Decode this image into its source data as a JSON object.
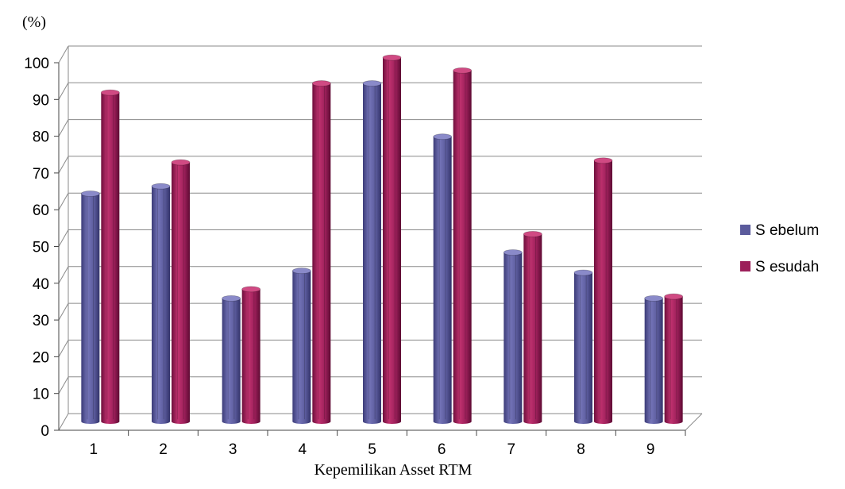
{
  "chart_data": {
    "type": "bar",
    "title": "",
    "ylabel": "(%)",
    "xlabel": "Kepemilikan Asset RTM",
    "categories": [
      "1",
      "2",
      "3",
      "4",
      "5",
      "6",
      "7",
      "8",
      "9"
    ],
    "series": [
      {
        "name": "S ebelum",
        "color": "#5b5b9c",
        "values": [
          62,
          64,
          33.5,
          41,
          92,
          77.5,
          46,
          40.5,
          33.5
        ]
      },
      {
        "name": "S esudah",
        "color": "#9c1f5a",
        "values": [
          89.5,
          70.5,
          36,
          92,
          99,
          95.5,
          51,
          71,
          34
        ]
      }
    ],
    "ylim": [
      0,
      100
    ],
    "yticks": [
      "0",
      "10",
      "20",
      "30",
      "40",
      "50",
      "60",
      "70",
      "80",
      "90",
      "100"
    ],
    "grid": true,
    "legend_position": "right",
    "style": "3d-cylinder"
  }
}
